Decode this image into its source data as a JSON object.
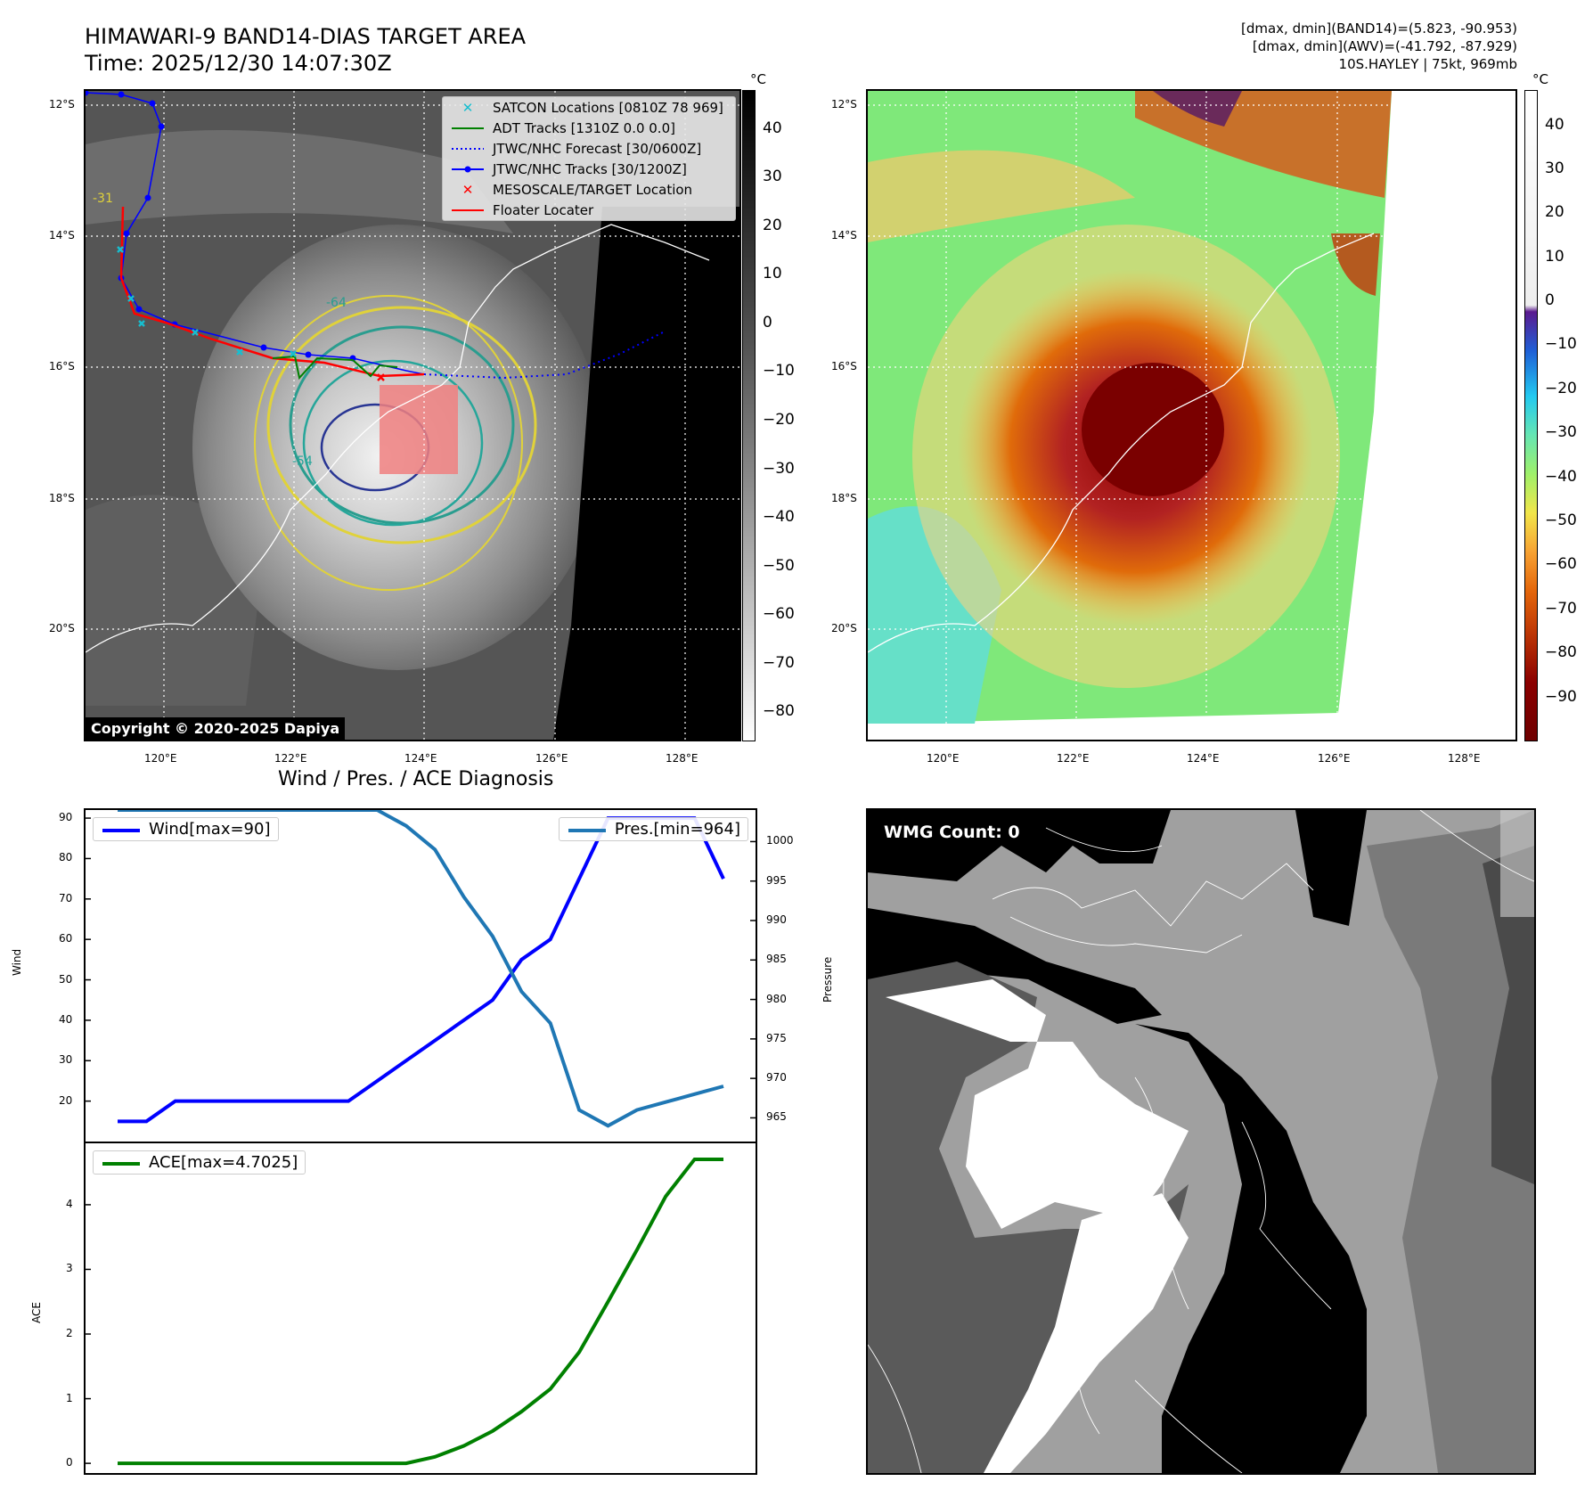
{
  "header": {
    "title_line1": "HIMAWARI-9 BAND14-DIAS TARGET AREA",
    "title_line2": "Time: 2025/12/30 14:07:30Z",
    "stats_line1": "[dmax, dmin](BAND14)=(5.823, -90.953)",
    "stats_line2": "[dmax, dmin](AWV)=(-41.792, -87.929)",
    "stats_line3": "10S.HAYLEY | 75kt, 969mb"
  },
  "map": {
    "lat_ticks": [
      "12°S",
      "14°S",
      "16°S",
      "18°S",
      "20°S"
    ],
    "lon_ticks": [
      "120°E",
      "122°E",
      "124°E",
      "126°E",
      "128°E"
    ],
    "copyright": "Copyright © 2020-2025 Dapiya",
    "legend": [
      {
        "label": "SATCON Locations [0810Z 78 969]",
        "color": "#17becf",
        "marker": "x"
      },
      {
        "label": "ADT Tracks [1310Z 0.0 0.0]",
        "color": "#008000",
        "marker": "line"
      },
      {
        "label": "JTWC/NHC Forecast [30/0600Z]",
        "color": "#0000ff",
        "marker": "dotted"
      },
      {
        "label": "JTWC/NHC Tracks [30/1200Z]",
        "color": "#0000ff",
        "marker": "line-dot"
      },
      {
        "label": "MESOSCALE/TARGET Location",
        "color": "#ff0000",
        "marker": "x"
      },
      {
        "label": "Floater Locater",
        "color": "#ff0000",
        "marker": "line"
      }
    ],
    "contour_labels": [
      "-64",
      "-54",
      "-31"
    ],
    "colorbar": {
      "unit": "°C",
      "ticks": [
        "40",
        "30",
        "20",
        "10",
        "0",
        "−10",
        "−20",
        "−30",
        "−40",
        "−50",
        "−60",
        "−70",
        "−80"
      ]
    }
  },
  "awv_map": {
    "lat_ticks": [
      "12°S",
      "14°S",
      "16°S",
      "18°S",
      "20°S"
    ],
    "lon_ticks": [
      "120°E",
      "122°E",
      "124°E",
      "126°E",
      "128°E"
    ],
    "colorbar": {
      "unit": "°C",
      "ticks": [
        "40",
        "30",
        "20",
        "10",
        "0",
        "−10",
        "−20",
        "−30",
        "−40",
        "−50",
        "−60",
        "−70",
        "−80",
        "−90"
      ]
    }
  },
  "wmg": {
    "label": "WMG Count: 0"
  },
  "chart_data": [
    {
      "type": "line",
      "title": "Wind / Pres. / ACE Diagnosis",
      "ylabel": "Wind",
      "ylabel_right": "Pressure",
      "x": [
        0,
        1,
        2,
        3,
        4,
        5,
        6,
        7,
        8,
        9,
        10,
        11,
        12,
        13,
        14,
        15,
        16,
        17,
        18,
        19,
        20,
        21
      ],
      "ylim": [
        10,
        92
      ],
      "ylim_right": [
        962,
        1004
      ],
      "yticks": [
        20,
        30,
        40,
        50,
        60,
        70,
        80,
        90
      ],
      "yticks_right": [
        965,
        970,
        975,
        980,
        985,
        990,
        995,
        1000
      ],
      "series": [
        {
          "name": "Wind[max=90]",
          "axis": "left",
          "color": "#0000ff",
          "values": [
            15,
            15,
            20,
            20,
            20,
            20,
            20,
            20,
            20,
            25,
            30,
            35,
            40,
            45,
            55,
            60,
            75,
            90,
            90,
            90,
            90,
            75
          ]
        },
        {
          "name": "Pres.[min=964]",
          "axis": "right",
          "color": "#1f77b4",
          "values": [
            1004,
            1004,
            1004,
            1004,
            1004,
            1004,
            1004,
            1004,
            1004,
            1004,
            1002,
            999,
            993,
            988,
            981,
            977,
            966,
            964,
            966,
            967,
            968,
            969
          ]
        }
      ]
    },
    {
      "type": "line",
      "ylabel": "ACE",
      "x": [
        0,
        1,
        2,
        3,
        4,
        5,
        6,
        7,
        8,
        9,
        10,
        11,
        12,
        13,
        14,
        15,
        16,
        17,
        18,
        19,
        20,
        21
      ],
      "ylim": [
        -0.15,
        4.95
      ],
      "yticks": [
        0,
        1,
        2,
        3,
        4
      ],
      "series": [
        {
          "name": "ACE[max=4.7025]",
          "color": "#008000",
          "values": [
            0,
            0,
            0,
            0,
            0,
            0,
            0,
            0,
            0,
            0,
            0,
            0.1,
            0.27,
            0.5,
            0.8,
            1.15,
            1.72,
            2.5,
            3.3,
            4.13,
            4.7025,
            4.7025
          ]
        }
      ]
    }
  ]
}
